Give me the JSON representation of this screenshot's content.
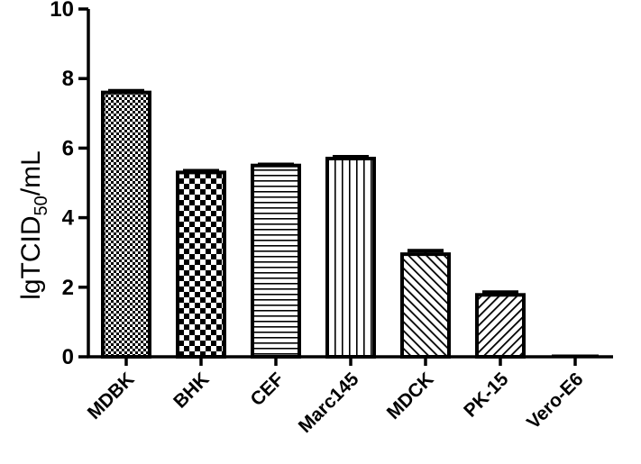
{
  "chart_data": {
    "type": "bar",
    "categories": [
      "MDBK",
      "BHK",
      "CEF",
      "Marc145",
      "MDCK",
      "PK-15",
      "Vero-E6"
    ],
    "values": [
      7.6,
      5.3,
      5.5,
      5.7,
      2.95,
      1.78,
      0.0
    ],
    "errors": [
      0.05,
      0.05,
      0.03,
      0.05,
      0.1,
      0.08,
      0.0
    ],
    "patterns": [
      "fine-check",
      "checker",
      "horizontal-lines",
      "vertical-lines",
      "diagonal-up",
      "diagonal-down",
      "none"
    ],
    "ylabel": {
      "prefix": "lgTCID",
      "subscript": "50",
      "suffix": "/mL"
    },
    "ylim": [
      0,
      10
    ],
    "yticks": [
      "0",
      "2",
      "4",
      "6",
      "8",
      "10"
    ],
    "grid": false,
    "legend": "none"
  }
}
